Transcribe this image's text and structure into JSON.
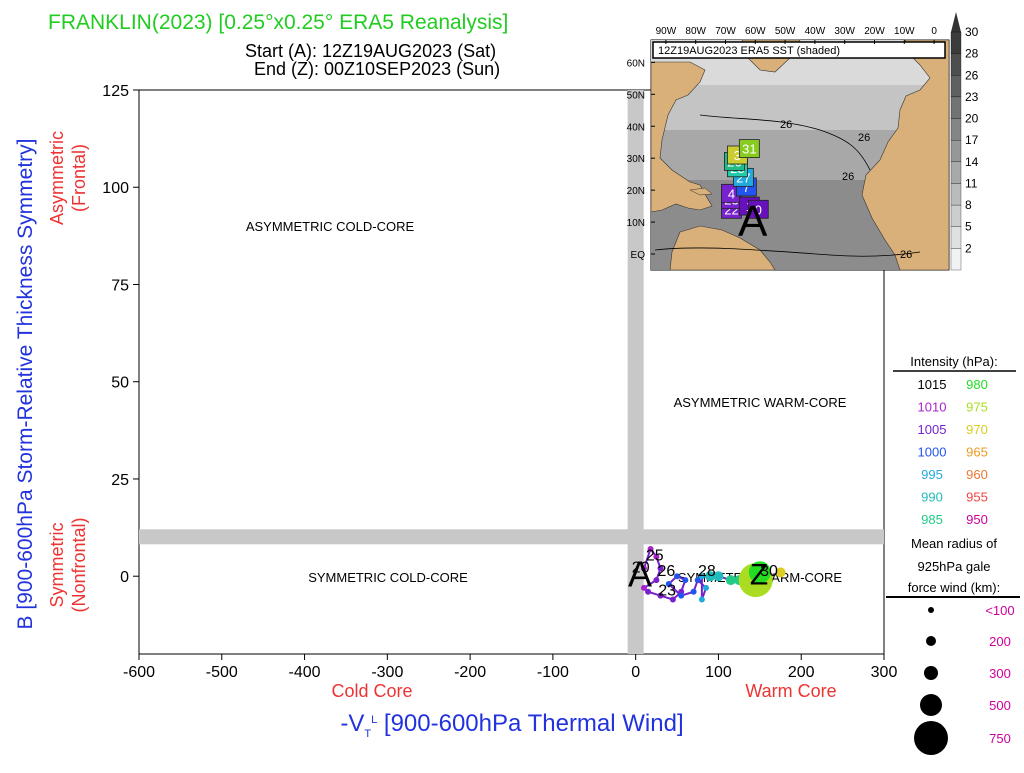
{
  "header": {
    "title": "FRANKLIN(2023) [0.25°x0.25° ERA5 Reanalysis]",
    "start": "Start (A): 12Z19AUG2023 (Sat)",
    "end": "End (Z): 00Z10SEP2023 (Sun)"
  },
  "colors": {
    "title": "#22cc22",
    "ylabel": "#2233dd",
    "side_label": "#ee3333",
    "grey_band": "#c8c8c8",
    "gale_size": "#cc0099",
    "land": "#d9b07a",
    "sea_dark": "#8a8a8a",
    "sea_light": "#dcdcdc"
  },
  "chart_data": {
    "type": "scatter",
    "xlabel": "-V_T^L [900-600hPa Thermal Wind]",
    "ylabel": "B [900-600hPa Storm-Relative Thickness Symmetry]",
    "xlim": [
      -600,
      300
    ],
    "ylim": [
      -20,
      125
    ],
    "xticks": [
      -600,
      -500,
      -400,
      -300,
      -200,
      -100,
      0,
      100,
      200,
      300
    ],
    "yticks": [
      0,
      25,
      50,
      75,
      100,
      125
    ],
    "grid": false,
    "quadrants": [
      "ASYMMETRIC COLD-CORE",
      "ASYMMETRIC WARM-CORE",
      "SYMMETRIC COLD-CORE",
      "SYMMETRIC WARM-CORE"
    ],
    "side_labels": {
      "asym": "Asymmetric",
      "asym_sub": "(Frontal)",
      "sym": "Symmetric",
      "sym_sub": "(Nonfrontal)",
      "cold": "Cold Core",
      "warm": "Warm Core"
    },
    "start_label": "A",
    "end_label": "Z",
    "track_labels": [
      {
        "text": "25",
        "x": 22,
        "y": 4
      },
      {
        "text": "20",
        "x": 5,
        "y": 1
      },
      {
        "text": "26",
        "x": 36,
        "y": 0
      },
      {
        "text": "28",
        "x": 85,
        "y": 0
      },
      {
        "text": "30",
        "x": 160,
        "y": 0
      },
      {
        "text": "23",
        "x": 37,
        "y": -5
      }
    ],
    "track": [
      {
        "x": 10,
        "y": 2,
        "hpa": 1010,
        "r": 100
      },
      {
        "x": 18,
        "y": 7,
        "hpa": 1008,
        "r": 100
      },
      {
        "x": 25,
        "y": 5,
        "hpa": 1008,
        "r": 100
      },
      {
        "x": 30,
        "y": 2,
        "hpa": 1007,
        "r": 100
      },
      {
        "x": 25,
        "y": -1,
        "hpa": 1007,
        "r": 100
      },
      {
        "x": 10,
        "y": -3,
        "hpa": 1008,
        "r": 100
      },
      {
        "x": 15,
        "y": -4,
        "hpa": 1007,
        "r": 100
      },
      {
        "x": 30,
        "y": -5,
        "hpa": 1006,
        "r": 100
      },
      {
        "x": 45,
        "y": -6,
        "hpa": 1004,
        "r": 100
      },
      {
        "x": 55,
        "y": -4,
        "hpa": 1003,
        "r": 100
      },
      {
        "x": 60,
        "y": -1,
        "hpa": 1002,
        "r": 100
      },
      {
        "x": 50,
        "y": 0,
        "hpa": 1002,
        "r": 100
      },
      {
        "x": 40,
        "y": -2,
        "hpa": 1001,
        "r": 100
      },
      {
        "x": 55,
        "y": -5,
        "hpa": 1000,
        "r": 100
      },
      {
        "x": 70,
        "y": -4,
        "hpa": 999,
        "r": 150
      },
      {
        "x": 75,
        "y": -1,
        "hpa": 998,
        "r": 150
      },
      {
        "x": 85,
        "y": -3,
        "hpa": 996,
        "r": 150
      },
      {
        "x": 80,
        "y": -6,
        "hpa": 995,
        "r": 150
      },
      {
        "x": 80,
        "y": 0,
        "hpa": 993,
        "r": 150
      },
      {
        "x": 90,
        "y": 0,
        "hpa": 990,
        "r": 200
      },
      {
        "x": 100,
        "y": 0,
        "hpa": 988,
        "r": 200
      },
      {
        "x": 115,
        "y": -1,
        "hpa": 986,
        "r": 220
      },
      {
        "x": 125,
        "y": -1,
        "hpa": 983,
        "r": 260
      },
      {
        "x": 145,
        "y": 0,
        "hpa": 978,
        "r": 330
      },
      {
        "x": 160,
        "y": 0,
        "hpa": 972,
        "r": 260
      },
      {
        "x": 175,
        "y": 1,
        "hpa": 969,
        "r": 200
      },
      {
        "x": 145,
        "y": -1,
        "hpa": 976,
        "r": 750
      },
      {
        "x": 150,
        "y": 1,
        "hpa": 980,
        "r": 500
      }
    ]
  },
  "inset": {
    "title": "12Z19AUG2023 ERA5 SST (shaded)",
    "lon_labels": [
      "90W",
      "80W",
      "70W",
      "60W",
      "50W",
      "40W",
      "30W",
      "20W",
      "10W",
      "0"
    ],
    "lat_labels": [
      "60N",
      "50N",
      "40N",
      "30N",
      "20N",
      "10N",
      "EQ"
    ],
    "colorbar": [
      "30",
      "28",
      "26",
      "23",
      "20",
      "17",
      "14",
      "11",
      "8",
      "5",
      "2"
    ],
    "contour_labels": [
      "26",
      "26",
      "26",
      "26"
    ],
    "start_marker": "A",
    "track_boxes": [
      {
        "lon": -68,
        "lat": 14,
        "label": "22",
        "color": "#7722cc"
      },
      {
        "lon": -68,
        "lat": 17,
        "label": "23",
        "color": "#7722cc"
      },
      {
        "lon": -68,
        "lat": 19,
        "label": "4",
        "color": "#7722cc"
      },
      {
        "lon": -62,
        "lat": 15,
        "label": "1",
        "color": "#6611bb"
      },
      {
        "lon": -59,
        "lat": 14,
        "label": "0",
        "color": "#6611bb"
      },
      {
        "lon": -63,
        "lat": 21,
        "label": "7",
        "color": "#2255ee"
      },
      {
        "lon": -64,
        "lat": 24,
        "label": "27",
        "color": "#22aadd"
      },
      {
        "lon": -66,
        "lat": 27,
        "label": "28",
        "color": "#22ccaa"
      },
      {
        "lon": -67,
        "lat": 29,
        "label": "26",
        "color": "#22bb88"
      },
      {
        "lon": -66,
        "lat": 31,
        "label": "3",
        "color": "#cccc33"
      },
      {
        "lon": -62,
        "lat": 33,
        "label": "31",
        "color": "#88cc22"
      }
    ]
  },
  "legend": {
    "intensity_title": "Intensity (hPa):",
    "left": [
      {
        "label": "1015",
        "color": "#000000"
      },
      {
        "label": "1010",
        "color": "#aa22cc"
      },
      {
        "label": "1005",
        "color": "#7722cc"
      },
      {
        "label": "1000",
        "color": "#2255ee"
      },
      {
        "label": "995",
        "color": "#22aadd"
      },
      {
        "label": "990",
        "color": "#22bbbb"
      },
      {
        "label": "985",
        "color": "#22cc88"
      }
    ],
    "right": [
      {
        "label": "980",
        "color": "#22dd22"
      },
      {
        "label": "975",
        "color": "#aadd22"
      },
      {
        "label": "970",
        "color": "#ddcc22"
      },
      {
        "label": "965",
        "color": "#ee9922"
      },
      {
        "label": "960",
        "color": "#ee7733"
      },
      {
        "label": "955",
        "color": "#ee4444"
      },
      {
        "label": "950",
        "color": "#cc0099"
      }
    ],
    "radius_title_1": "Mean radius of",
    "radius_title_2": "925hPa gale",
    "radius_title_3": "force wind (km):",
    "radius_items": [
      {
        "label": "<100",
        "r": 3
      },
      {
        "label": "200",
        "r": 5
      },
      {
        "label": "300",
        "r": 7
      },
      {
        "label": "500",
        "r": 11
      },
      {
        "label": "750",
        "r": 17
      }
    ]
  }
}
